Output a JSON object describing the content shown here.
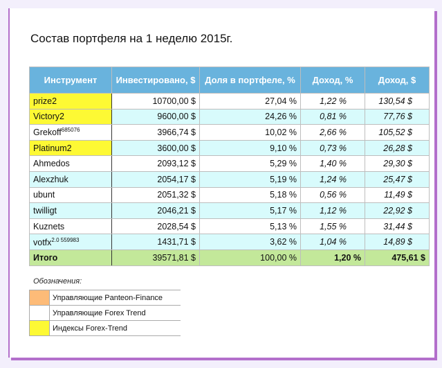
{
  "title": "Состав портфеля на 1 неделю 2015г.",
  "headers": [
    "Инструмент",
    "Инвестировано, $",
    "Доля в портфеле, %",
    "Доход, %",
    "Доход, $"
  ],
  "rows": [
    {
      "name": "prize2",
      "sup": "",
      "invested": "10700,00 $",
      "share": "27,04 %",
      "income_pct": "1,22 %",
      "income_usd": "130,54 $",
      "highlight": "yellow"
    },
    {
      "name": "Victory2",
      "sup": "",
      "invested": "9600,00 $",
      "share": "24,26 %",
      "income_pct": "0,81 %",
      "income_usd": "77,76 $",
      "highlight": "yellow"
    },
    {
      "name": "Grekoff",
      "sup": "685076",
      "invested": "3966,74 $",
      "share": "10,02 %",
      "income_pct": "2,66 %",
      "income_usd": "105,52 $",
      "highlight": "none"
    },
    {
      "name": "Platinum2",
      "sup": "",
      "invested": "3600,00 $",
      "share": "9,10 %",
      "income_pct": "0,73 %",
      "income_usd": "26,28 $",
      "highlight": "yellow"
    },
    {
      "name": "Ahmedos",
      "sup": "",
      "invested": "2093,12 $",
      "share": "5,29 %",
      "income_pct": "1,40 %",
      "income_usd": "29,30 $",
      "highlight": "none"
    },
    {
      "name": "Alexzhuk",
      "sup": "",
      "invested": "2054,17 $",
      "share": "5,19 %",
      "income_pct": "1,24 %",
      "income_usd": "25,47 $",
      "highlight": "none"
    },
    {
      "name": "ubunt",
      "sup": "",
      "invested": "2051,32 $",
      "share": "5,18 %",
      "income_pct": "0,56 %",
      "income_usd": "11,49 $",
      "highlight": "none"
    },
    {
      "name": "twilligt",
      "sup": "",
      "invested": "2046,21 $",
      "share": "5,17 %",
      "income_pct": "1,12 %",
      "income_usd": "22,92 $",
      "highlight": "none"
    },
    {
      "name": "Kuznets",
      "sup": "",
      "invested": "2028,54 $",
      "share": "5,13 %",
      "income_pct": "1,55 %",
      "income_usd": "31,44 $",
      "highlight": "none"
    },
    {
      "name": "votfx",
      "sup": "2.0 559983",
      "invested": "1431,71 $",
      "share": "3,62 %",
      "income_pct": "1,04 %",
      "income_usd": "14,89 $",
      "highlight": "none"
    }
  ],
  "total": {
    "name": "Итого",
    "invested": "39571,81 $",
    "share": "100,00 %",
    "income_pct": "1,20 %",
    "income_usd": "475,61 $"
  },
  "legend": {
    "title": "Обозначения:",
    "items": [
      {
        "label": "Управляющие Panteon-Finance",
        "color": "#fdbb78"
      },
      {
        "label": "Управляющие Forex Trend",
        "color": "#ffffff"
      },
      {
        "label": "Индексы Forex-Trend",
        "color": "#fdf934"
      }
    ]
  }
}
